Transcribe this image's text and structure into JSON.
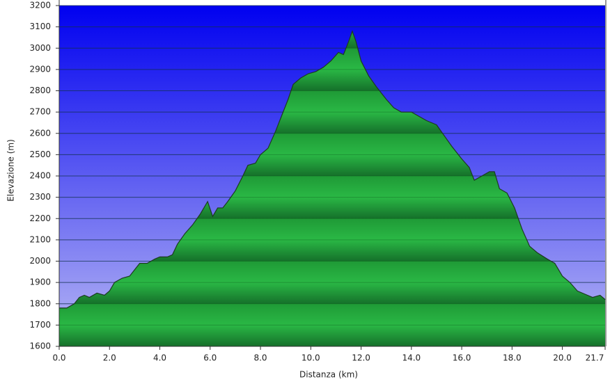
{
  "chart_data": {
    "type": "area",
    "xlabel": "Distanza   (km)",
    "ylabel": "Elevazione (m)",
    "x": [
      0.0,
      0.3,
      0.6,
      0.8,
      1.0,
      1.2,
      1.5,
      1.8,
      2.0,
      2.2,
      2.5,
      2.8,
      3.0,
      3.2,
      3.5,
      3.8,
      4.0,
      4.3,
      4.5,
      4.7,
      5.0,
      5.3,
      5.6,
      5.9,
      6.1,
      6.3,
      6.5,
      6.7,
      7.0,
      7.3,
      7.5,
      7.8,
      8.0,
      8.3,
      8.6,
      8.9,
      9.1,
      9.3,
      9.6,
      9.9,
      10.2,
      10.5,
      10.8,
      11.1,
      11.3,
      11.5,
      11.65,
      11.8,
      12.0,
      12.3,
      12.6,
      13.0,
      13.3,
      13.6,
      14.0,
      14.3,
      14.6,
      15.0,
      15.3,
      15.6,
      16.0,
      16.3,
      16.5,
      16.8,
      17.1,
      17.3,
      17.5,
      17.8,
      18.1,
      18.4,
      18.7,
      19.0,
      19.4,
      19.7,
      20.0,
      20.3,
      20.6,
      21.0,
      21.2,
      21.5,
      21.7
    ],
    "values": [
      1780,
      1780,
      1800,
      1830,
      1840,
      1830,
      1850,
      1840,
      1860,
      1900,
      1920,
      1930,
      1960,
      1990,
      1990,
      2010,
      2020,
      2020,
      2030,
      2080,
      2130,
      2170,
      2220,
      2280,
      2210,
      2250,
      2250,
      2280,
      2330,
      2400,
      2450,
      2460,
      2500,
      2530,
      2610,
      2700,
      2760,
      2830,
      2860,
      2880,
      2890,
      2910,
      2940,
      2980,
      2970,
      3030,
      3080,
      3030,
      2940,
      2870,
      2820,
      2760,
      2720,
      2700,
      2700,
      2680,
      2660,
      2640,
      2590,
      2540,
      2480,
      2440,
      2380,
      2400,
      2420,
      2420,
      2340,
      2320,
      2250,
      2150,
      2070,
      2040,
      2010,
      1990,
      1930,
      1900,
      1860,
      1840,
      1830,
      1840,
      1820
    ],
    "color": "#24a83c",
    "xlim": [
      0,
      21.7
    ],
    "xticks": [
      {
        "value": 0,
        "label": "0.0"
      },
      {
        "value": 2,
        "label": "2.0"
      },
      {
        "value": 4,
        "label": "4.0"
      },
      {
        "value": 6,
        "label": "6.0"
      },
      {
        "value": 8,
        "label": "8.0"
      },
      {
        "value": 10,
        "label": "10.0"
      },
      {
        "value": 12,
        "label": "12.0"
      },
      {
        "value": 14,
        "label": "14.0"
      },
      {
        "value": 16,
        "label": "16.0"
      },
      {
        "value": 18,
        "label": "18.0"
      },
      {
        "value": 20,
        "label": "20.0"
      },
      21.7
    ],
    "ylim": [
      1600,
      3200
    ],
    "yticks": [
      1600,
      1700,
      1800,
      1900,
      2000,
      2100,
      2200,
      2300,
      2400,
      2500,
      2600,
      2700,
      2800,
      2900,
      3000,
      3100,
      3200
    ],
    "grid": true
  }
}
